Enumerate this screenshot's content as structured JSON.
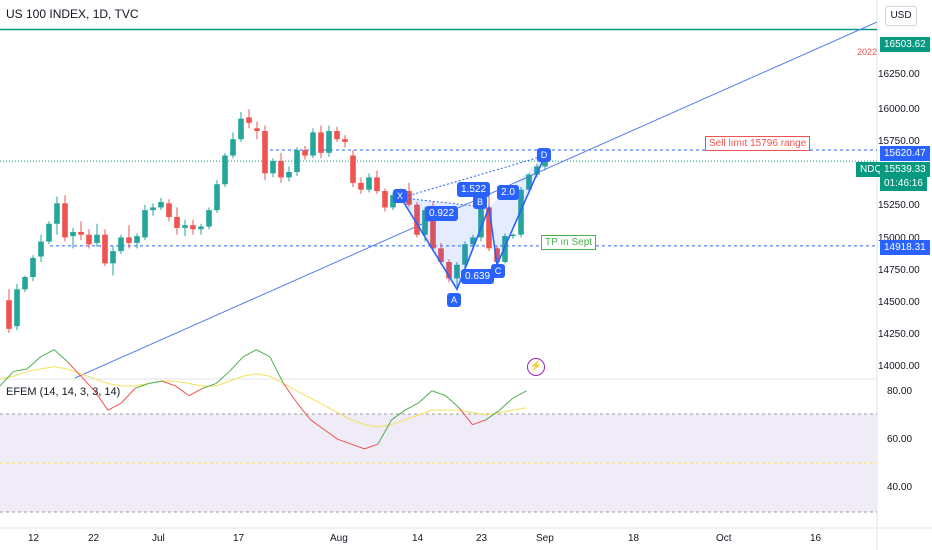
{
  "header": {
    "title": "US 100 INDEX, 1D, TVC",
    "currency": "USD"
  },
  "price_axis": {
    "ticks": [
      "16250.00",
      "16000.00",
      "15750.00",
      "15250.00",
      "15000.00",
      "14750.00",
      "14500.00",
      "14250.00",
      "14000.00"
    ],
    "tags": {
      "top_line": "16503.62",
      "top_line_note": "2022",
      "upper_dash": "15620.47",
      "symbol": "NDQ",
      "current": "15539.33",
      "countdown": "01:46:16",
      "lower_dash": "14918.31"
    }
  },
  "time_axis": {
    "ticks": [
      "12",
      "22",
      "Jul",
      "17",
      "Aug",
      "14",
      "23",
      "Sep",
      "18",
      "Oct",
      "16"
    ]
  },
  "annotations": {
    "sell": "Sell lımıt 15796 range",
    "tp": "TP ın Sept"
  },
  "pattern": {
    "points": [
      "X",
      "A",
      "B",
      "C",
      "D"
    ],
    "ratios": [
      "0.922",
      "1.522",
      "0.639",
      "2.0"
    ]
  },
  "oscillator": {
    "title": "EFEM (14, 14, 3, 3, 14)",
    "ticks": [
      "80.00",
      "60.00",
      "40.00"
    ]
  },
  "colors": {
    "up": "#26a69a",
    "down": "#ef5350",
    "teal_line": "#089981",
    "trend": "#5b7ff0",
    "pattern": "#2962ff",
    "osc_green": "#4caf50",
    "osc_red": "#ef5350",
    "osc_yellow": "#f5e05c",
    "osc_band": "#efebf7"
  },
  "chart_data": {
    "type": "candlestick",
    "symbol": "NDQ",
    "candles": [
      [
        14520,
        14600,
        14280,
        14310
      ],
      [
        14330,
        14640,
        14300,
        14600
      ],
      [
        14600,
        14700,
        14580,
        14690
      ],
      [
        14690,
        14850,
        14660,
        14830
      ],
      [
        14840,
        15000,
        14800,
        14950
      ],
      [
        14950,
        15100,
        14930,
        15080
      ],
      [
        15080,
        15280,
        15000,
        15230
      ],
      [
        15230,
        15290,
        14950,
        14980
      ],
      [
        14990,
        15050,
        14900,
        15020
      ],
      [
        15020,
        15100,
        14960,
        15000
      ],
      [
        15000,
        15040,
        14900,
        14930
      ],
      [
        14940,
        15080,
        14910,
        15000
      ],
      [
        15000,
        15040,
        14770,
        14790
      ],
      [
        14790,
        14920,
        14700,
        14880
      ],
      [
        14880,
        15000,
        14860,
        14980
      ],
      [
        14980,
        15070,
        14900,
        14940
      ],
      [
        14940,
        15010,
        14900,
        14990
      ],
      [
        14980,
        15220,
        14960,
        15180
      ],
      [
        15180,
        15230,
        15140,
        15200
      ],
      [
        15200,
        15270,
        15180,
        15240
      ],
      [
        15230,
        15260,
        15100,
        15130
      ],
      [
        15130,
        15200,
        15000,
        15050
      ],
      [
        15050,
        15110,
        14990,
        15070
      ],
      [
        15070,
        15110,
        15000,
        15040
      ],
      [
        15040,
        15080,
        15000,
        15060
      ],
      [
        15060,
        15200,
        15040,
        15180
      ],
      [
        15180,
        15400,
        15160,
        15370
      ],
      [
        15370,
        15600,
        15350,
        15580
      ],
      [
        15580,
        15750,
        15560,
        15700
      ],
      [
        15700,
        15900,
        15680,
        15850
      ],
      [
        15860,
        15920,
        15780,
        15820
      ],
      [
        15780,
        15830,
        15700,
        15760
      ],
      [
        15760,
        15800,
        15400,
        15450
      ],
      [
        15450,
        15560,
        15420,
        15540
      ],
      [
        15540,
        15600,
        15380,
        15420
      ],
      [
        15420,
        15500,
        15390,
        15460
      ],
      [
        15460,
        15640,
        15430,
        15620
      ],
      [
        15620,
        15650,
        15550,
        15580
      ],
      [
        15580,
        15780,
        15560,
        15750
      ],
      [
        15750,
        15800,
        15560,
        15600
      ],
      [
        15600,
        15800,
        15570,
        15760
      ],
      [
        15760,
        15790,
        15680,
        15700
      ],
      [
        15700,
        15730,
        15640,
        15680
      ],
      [
        15580,
        15620,
        15350,
        15380
      ],
      [
        15380,
        15420,
        15300,
        15330
      ],
      [
        15330,
        15450,
        15310,
        15420
      ],
      [
        15420,
        15470,
        15300,
        15320
      ],
      [
        15320,
        15340,
        15170,
        15200
      ],
      [
        15200,
        15310,
        15180,
        15290
      ],
      [
        15290,
        15340,
        15260,
        15320
      ],
      [
        15320,
        15380,
        15200,
        15220
      ],
      [
        15220,
        15240,
        14980,
        15000
      ],
      [
        15000,
        15200,
        14950,
        15180
      ],
      [
        15180,
        15240,
        14880,
        14900
      ],
      [
        14900,
        14940,
        14780,
        14800
      ],
      [
        14800,
        14820,
        14650,
        14680
      ],
      [
        14680,
        14800,
        14620,
        14780
      ],
      [
        14780,
        14950,
        14760,
        14930
      ],
      [
        14930,
        15000,
        14900,
        14980
      ],
      [
        14980,
        15230,
        14950,
        15200
      ],
      [
        15200,
        15280,
        14880,
        14900
      ],
      [
        14900,
        14920,
        14780,
        14800
      ],
      [
        14800,
        15010,
        14790,
        14990
      ],
      [
        14990,
        15010,
        14970,
        15000
      ],
      [
        15000,
        15350,
        14980,
        15330
      ],
      [
        15330,
        15450,
        15300,
        15440
      ],
      [
        15440,
        15520,
        15420,
        15500
      ],
      [
        15500,
        15560,
        15470,
        15539.33
      ]
    ],
    "levels": {
      "resistance": 16503.62,
      "sell_zone": 15620.47,
      "tp": 14918.31,
      "last": 15539.33
    },
    "y_range": [
      13950,
      16720
    ]
  }
}
